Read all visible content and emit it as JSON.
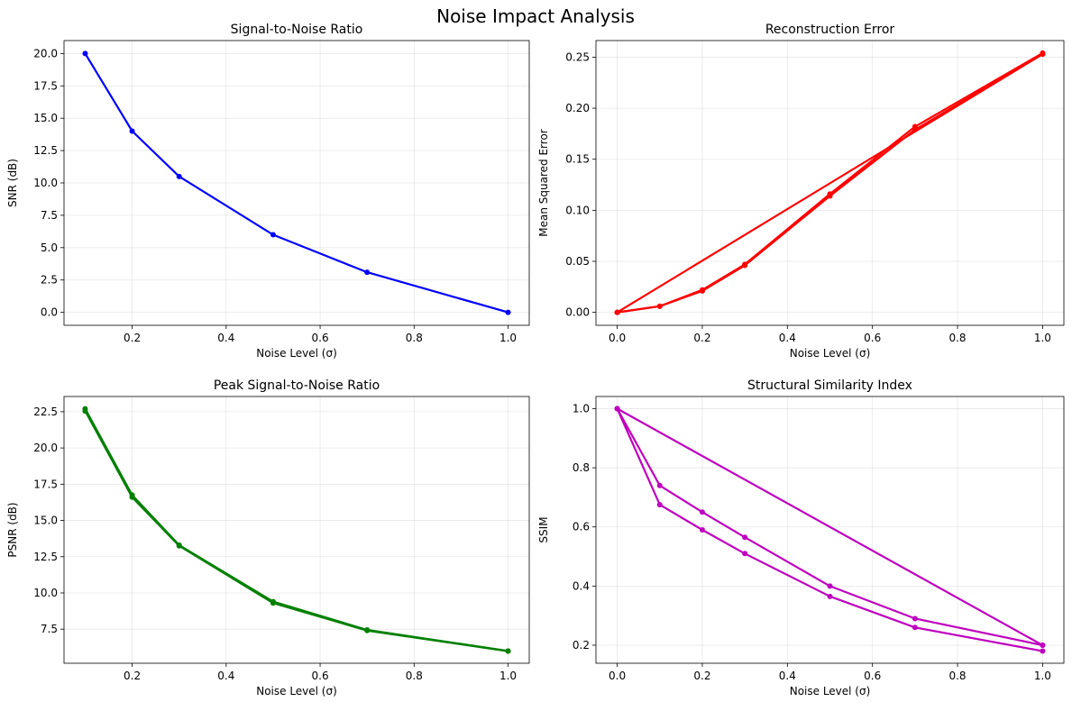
{
  "figure": {
    "title": "Noise Impact Analysis"
  },
  "chart_data": [
    {
      "type": "line",
      "title": "Signal-to-Noise Ratio",
      "xlabel": "Noise Level (σ)",
      "ylabel": "SNR (dB)",
      "xlim": [
        0.055,
        1.045
      ],
      "ylim": [
        -1.0,
        21.0
      ],
      "xticks": [
        0.2,
        0.4,
        0.6,
        0.8,
        1.0
      ],
      "xtick_labels": [
        "0.2",
        "0.4",
        "0.6",
        "0.8",
        "1.0"
      ],
      "yticks": [
        0,
        2.5,
        5,
        7.5,
        10,
        12.5,
        15,
        17.5,
        20
      ],
      "ytick_labels": [
        "0.0",
        "2.5",
        "5.0",
        "7.5",
        "10.0",
        "12.5",
        "15.0",
        "17.5",
        "20.0"
      ],
      "grid": true,
      "color": "#0000ff",
      "series": [
        {
          "x": [
            0.1,
            0.2,
            0.3,
            0.5,
            0.7,
            1.0
          ],
          "y": [
            20.0,
            14.0,
            10.5,
            6.0,
            3.1,
            0.0
          ]
        }
      ]
    },
    {
      "type": "line",
      "title": "Reconstruction Error",
      "xlabel": "Noise Level (σ)",
      "ylabel": "Mean Squared Error",
      "xlim": [
        -0.05,
        1.05
      ],
      "ylim": [
        -0.0127,
        0.2663
      ],
      "xticks": [
        0.0,
        0.2,
        0.4,
        0.6,
        0.8,
        1.0
      ],
      "xtick_labels": [
        "0.0",
        "0.2",
        "0.4",
        "0.6",
        "0.8",
        "1.0"
      ],
      "yticks": [
        0.0,
        0.05,
        0.1,
        0.15,
        0.2,
        0.25
      ],
      "ytick_labels": [
        "0.00",
        "0.05",
        "0.10",
        "0.15",
        "0.20",
        "0.25"
      ],
      "grid": true,
      "color": "#ff0000",
      "series": [
        {
          "x": [
            0.0,
            0.1,
            0.2,
            0.3,
            0.5,
            0.7,
            1.0
          ],
          "y": [
            0.0,
            0.006,
            0.022,
            0.047,
            0.116,
            0.182,
            0.254
          ]
        },
        {
          "x": [
            0.0,
            0.1,
            0.2,
            0.3,
            0.5,
            0.7,
            1.0
          ],
          "y": [
            0.0,
            0.006,
            0.021,
            0.046,
            0.114,
            0.179,
            0.253
          ]
        },
        {
          "x": [
            1.0,
            0.0
          ],
          "y": [
            0.253,
            0.0
          ]
        }
      ]
    },
    {
      "type": "line",
      "title": "Peak Signal-to-Noise Ratio",
      "xlabel": "Noise Level (σ)",
      "ylabel": "PSNR (dB)",
      "xlim": [
        0.055,
        1.045
      ],
      "ylim": [
        5.15,
        23.55
      ],
      "xticks": [
        0.2,
        0.4,
        0.6,
        0.8,
        1.0
      ],
      "xtick_labels": [
        "0.2",
        "0.4",
        "0.6",
        "0.8",
        "1.0"
      ],
      "yticks": [
        7.5,
        10,
        12.5,
        15,
        17.5,
        20,
        22.5
      ],
      "ytick_labels": [
        "7.5",
        "10.0",
        "12.5",
        "15.0",
        "17.5",
        "20.0",
        "22.5"
      ],
      "grid": true,
      "color": "#008000",
      "series": [
        {
          "x": [
            0.1,
            0.2,
            0.3,
            0.5,
            0.7,
            1.0
          ],
          "y": [
            22.7,
            16.75,
            13.3,
            9.4,
            7.45,
            6.0
          ]
        },
        {
          "x": [
            0.1,
            0.2,
            0.3,
            0.5,
            0.7,
            1.0
          ],
          "y": [
            22.55,
            16.6,
            13.25,
            9.3,
            7.4,
            5.98
          ]
        }
      ]
    },
    {
      "type": "line",
      "title": "Structural Similarity Index",
      "xlabel": "Noise Level (σ)",
      "ylabel": "SSIM",
      "xlim": [
        -0.05,
        1.05
      ],
      "ylim": [
        0.139,
        1.041
      ],
      "xticks": [
        0.0,
        0.2,
        0.4,
        0.6,
        0.8,
        1.0
      ],
      "xtick_labels": [
        "0.0",
        "0.2",
        "0.4",
        "0.6",
        "0.8",
        "1.0"
      ],
      "yticks": [
        0.2,
        0.4,
        0.6,
        0.8,
        1.0
      ],
      "ytick_labels": [
        "0.2",
        "0.4",
        "0.6",
        "0.8",
        "1.0"
      ],
      "grid": true,
      "color": "#bf00bf",
      "series": [
        {
          "x": [
            0.0,
            0.1,
            0.2,
            0.3,
            0.5,
            0.7,
            1.0
          ],
          "y": [
            1.0,
            0.74,
            0.65,
            0.565,
            0.4,
            0.29,
            0.2
          ]
        },
        {
          "x": [
            0.0,
            0.1,
            0.2,
            0.3,
            0.5,
            0.7,
            1.0
          ],
          "y": [
            1.0,
            0.675,
            0.59,
            0.51,
            0.365,
            0.26,
            0.18
          ]
        },
        {
          "x": [
            1.0,
            0.0
          ],
          "y": [
            0.2,
            1.0
          ]
        }
      ]
    }
  ]
}
